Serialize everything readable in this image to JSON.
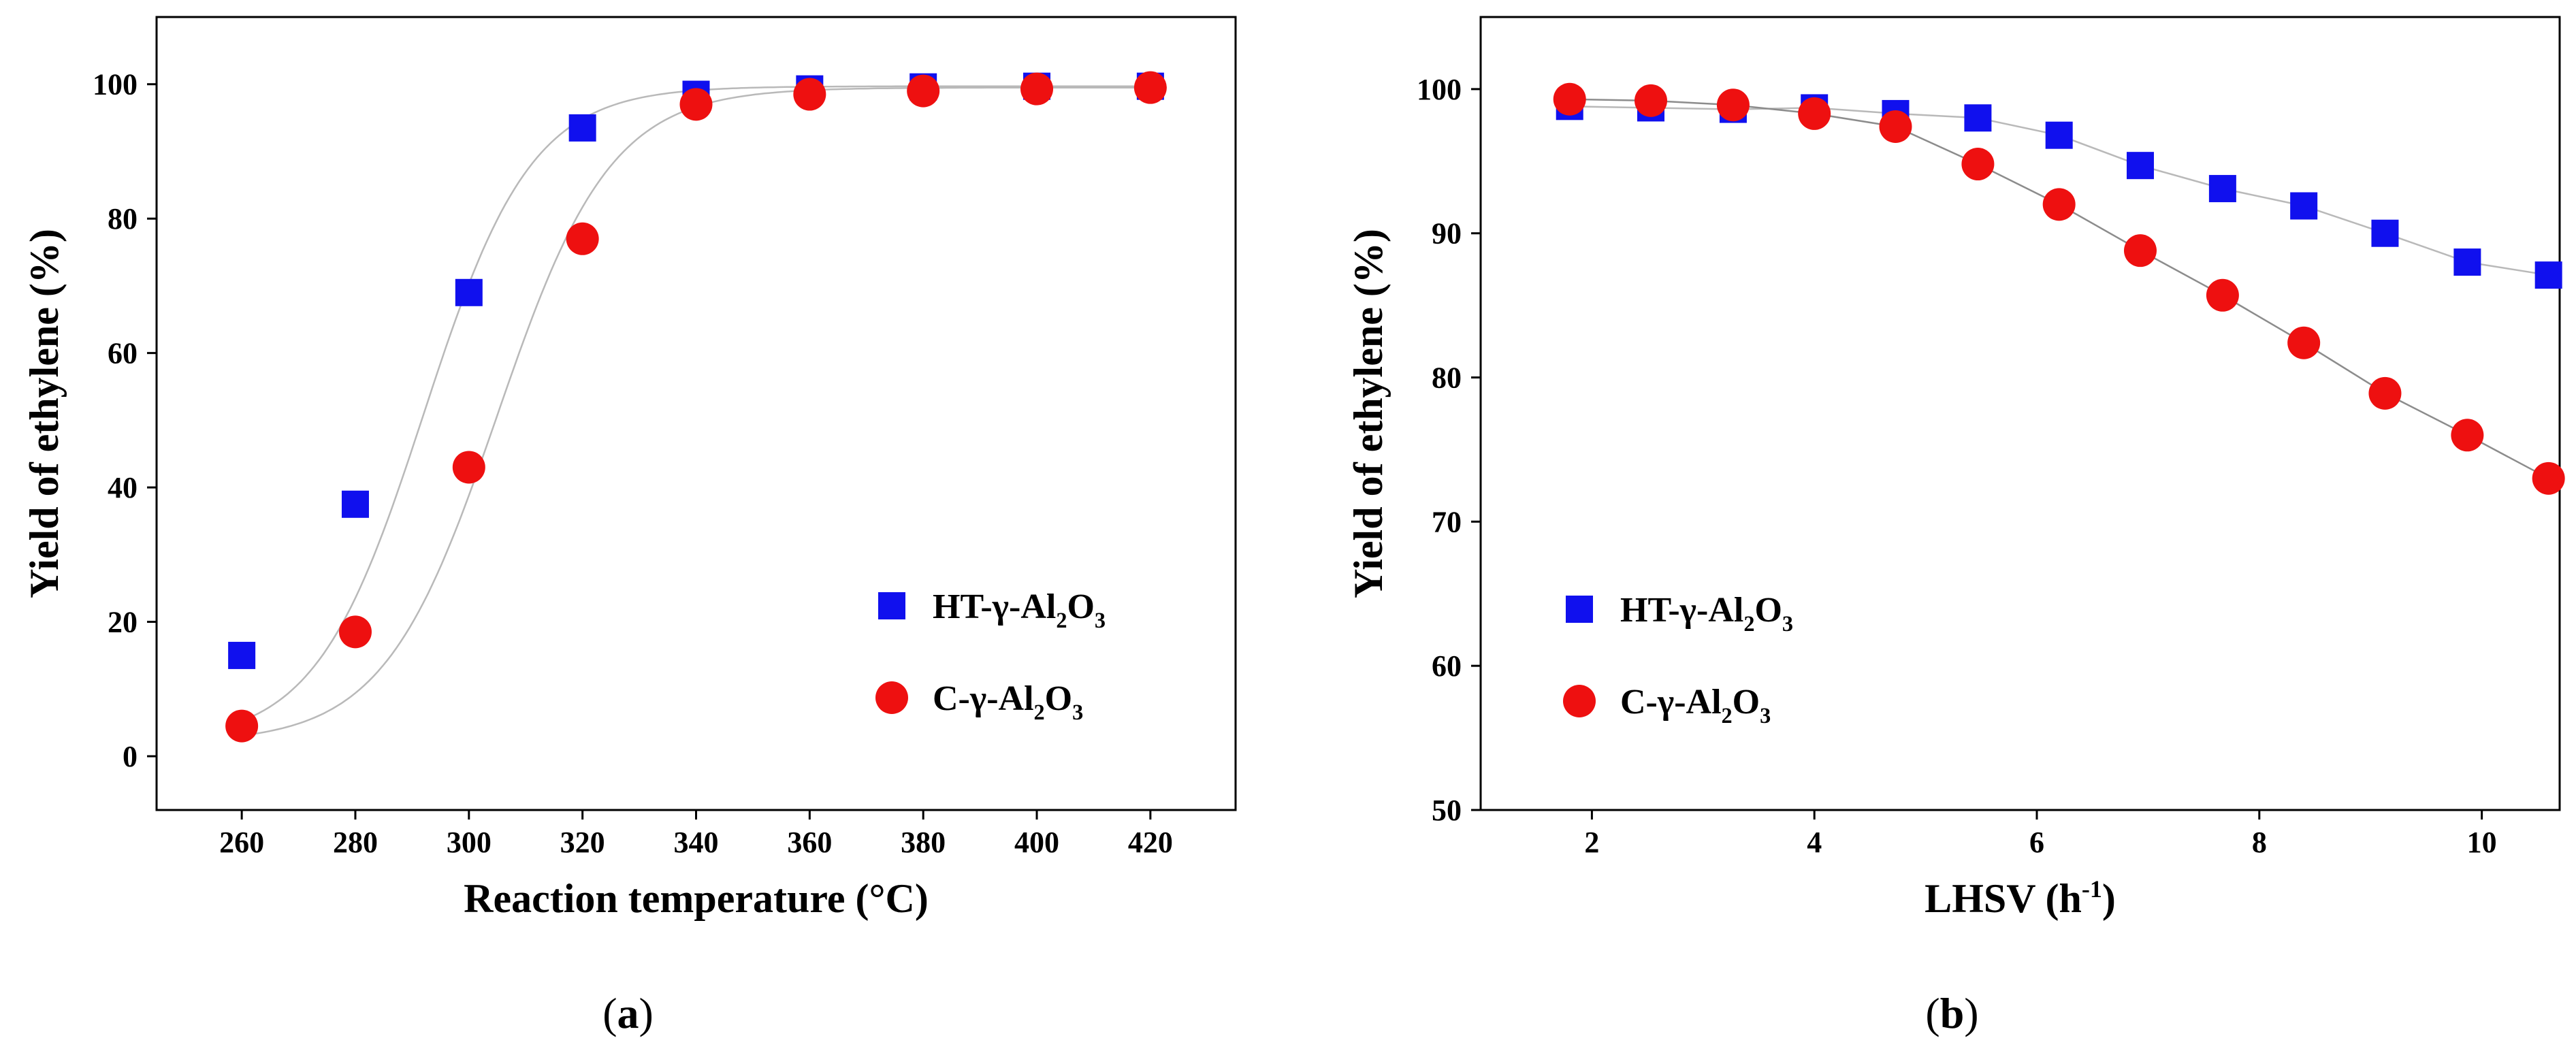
{
  "colors": {
    "series_blue": "#1010ee",
    "series_red": "#ee1010",
    "fit_line": "#b9b9b9",
    "fit_line_dark": "#8c8c8c",
    "axis": "#000000"
  },
  "chart_data": [
    {
      "type": "scatter",
      "panel_label": {
        "pre": "(",
        "letter": "a",
        "post": ")"
      },
      "xlabel": "Reaction temperature (°C)",
      "ylabel": "Yield of ethylene (%)",
      "xlim": [
        245,
        435
      ],
      "ylim": [
        -8,
        110
      ],
      "xticks": [
        260,
        280,
        300,
        320,
        340,
        360,
        380,
        400,
        420
      ],
      "yticks": [
        0,
        20,
        40,
        60,
        80,
        100
      ],
      "legend_position": "bottom-right",
      "series": [
        {
          "name_parts": [
            "HT-γ-Al",
            "2",
            "O",
            "3"
          ],
          "marker": "square",
          "color": "#1010ee",
          "x": [
            260,
            280,
            300,
            320,
            340,
            360,
            380,
            400,
            420
          ],
          "y": [
            15,
            37.5,
            69,
            93.5,
            98.5,
            99.3,
            99.6,
            99.7,
            99.7
          ],
          "fit": {
            "kind": "sigmoid",
            "bottom": 2,
            "top": 99.7,
            "x0": 292,
            "slope": 9.5
          }
        },
        {
          "name_parts": [
            "C-γ-Al",
            "2",
            "O",
            "3"
          ],
          "marker": "circle",
          "color": "#ee1010",
          "x": [
            260,
            280,
            300,
            320,
            340,
            360,
            380,
            400,
            420
          ],
          "y": [
            4.5,
            18.5,
            43,
            77,
            97,
            98.5,
            99,
            99.3,
            99.5
          ],
          "fit": {
            "kind": "sigmoid",
            "bottom": 2,
            "top": 99.5,
            "x0": 305,
            "slope": 10
          }
        }
      ]
    },
    {
      "type": "scatter",
      "panel_label": {
        "pre": "(",
        "letter": "b",
        "post": ")"
      },
      "xlabel_parts": [
        "LHSV (h",
        "-1",
        ")"
      ],
      "ylabel": "Yield of ethylene (%)",
      "xlim": [
        1,
        10.7
      ],
      "ylim": [
        50,
        105
      ],
      "xticks": [
        2,
        4,
        6,
        8,
        10
      ],
      "yticks": [
        50,
        60,
        70,
        80,
        90,
        100
      ],
      "legend_position": "bottom-left",
      "series": [
        {
          "name_parts": [
            "HT-γ-Al",
            "2",
            "O",
            "3"
          ],
          "marker": "square",
          "color": "#1010ee",
          "x": [
            1.8,
            2.53,
            3.27,
            4.0,
            4.73,
            5.47,
            6.2,
            6.93,
            7.67,
            8.4,
            9.13,
            9.87,
            10.6
          ],
          "y": [
            98.8,
            98.7,
            98.6,
            98.7,
            98.3,
            98.0,
            96.8,
            94.7,
            93.1,
            91.9,
            90.0,
            88.0,
            87.1
          ],
          "fit": {
            "kind": "points"
          }
        },
        {
          "name_parts": [
            "C-γ-Al",
            "2",
            "O",
            "3"
          ],
          "marker": "circle",
          "color": "#ee1010",
          "x": [
            1.8,
            2.53,
            3.27,
            4.0,
            4.73,
            5.47,
            6.2,
            6.93,
            7.67,
            8.4,
            9.13,
            9.87,
            10.6
          ],
          "y": [
            99.3,
            99.2,
            98.9,
            98.3,
            97.4,
            94.8,
            92.0,
            88.8,
            85.7,
            82.4,
            78.9,
            76.0,
            73.0
          ],
          "fit": {
            "kind": "points"
          }
        }
      ]
    }
  ]
}
